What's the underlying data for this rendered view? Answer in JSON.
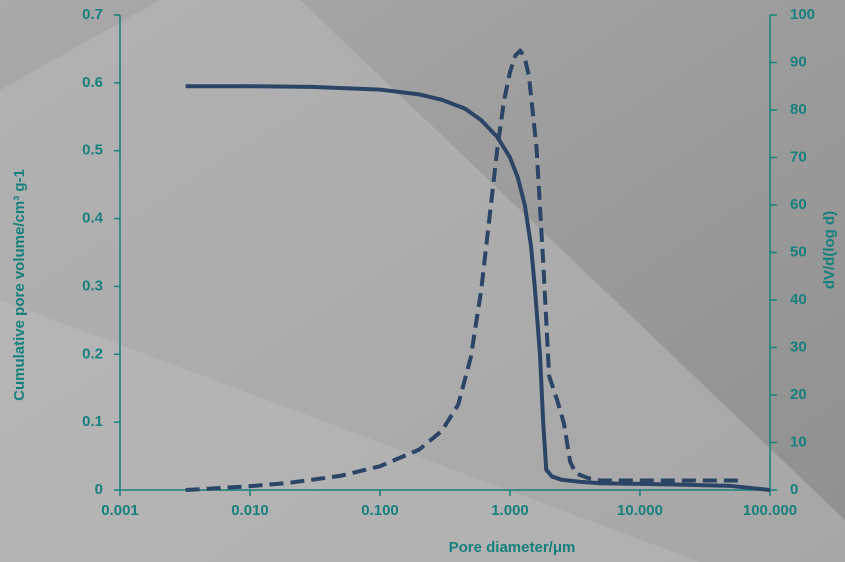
{
  "chart_data": {
    "type": "line",
    "x_label": "Pore diameter/μm",
    "y_label": "Cumulative pore volume/cm³ g-1",
    "y2_label": "dV/d(log d)",
    "x_log": true,
    "xlim": [
      0.001,
      100
    ],
    "xticks": [
      {
        "value": 0.001,
        "label": "0.001"
      },
      {
        "value": 0.01,
        "label": "0.010"
      },
      {
        "value": 0.1,
        "label": "0.100"
      },
      {
        "value": 1,
        "label": "1.000"
      },
      {
        "value": 10,
        "label": "10.000"
      },
      {
        "value": 100,
        "label": "100.000"
      }
    ],
    "ylim": [
      0,
      0.7
    ],
    "yticks": [
      0,
      0.1,
      0.2,
      0.3,
      0.4,
      0.5,
      0.6,
      0.7
    ],
    "y2lim": [
      0,
      100
    ],
    "y2ticks": [
      0,
      10,
      20,
      30,
      40,
      50,
      60,
      70,
      80,
      90,
      100
    ],
    "series": [
      {
        "color": "#2c4566",
        "line_style": "solid",
        "axis": "y",
        "x": [
          0.0032,
          0.01,
          0.03,
          0.1,
          0.2,
          0.3,
          0.45,
          0.6,
          0.8,
          1.0,
          1.15,
          1.3,
          1.45,
          1.55,
          1.7,
          1.8,
          1.9,
          2.1,
          2.5,
          3.5,
          5,
          10,
          20,
          50,
          100
        ],
        "values": [
          0.595,
          0.595,
          0.594,
          0.59,
          0.583,
          0.575,
          0.562,
          0.545,
          0.52,
          0.49,
          0.46,
          0.42,
          0.36,
          0.3,
          0.2,
          0.1,
          0.03,
          0.02,
          0.015,
          0.012,
          0.01,
          0.009,
          0.008,
          0.006,
          0
        ]
      },
      {
        "color": "#2c4566",
        "line_style": "dashed",
        "axis": "y2",
        "x": [
          0.0032,
          0.005,
          0.01,
          0.02,
          0.05,
          0.1,
          0.2,
          0.3,
          0.4,
          0.5,
          0.6,
          0.7,
          0.8,
          0.9,
          1.0,
          1.1,
          1.2,
          1.3,
          1.4,
          1.6,
          1.8,
          2.0,
          2.3,
          2.6,
          2.9,
          3.2,
          4,
          5,
          10,
          20,
          40,
          64
        ],
        "values": [
          0,
          0.3,
          0.8,
          1.5,
          3,
          5,
          8.5,
          12.5,
          18,
          28,
          42,
          58,
          72,
          82,
          88,
          91.5,
          92.5,
          91,
          87,
          72,
          48,
          24,
          19,
          14,
          6,
          3.5,
          2.5,
          2,
          2,
          2,
          2,
          2
        ]
      }
    ]
  }
}
